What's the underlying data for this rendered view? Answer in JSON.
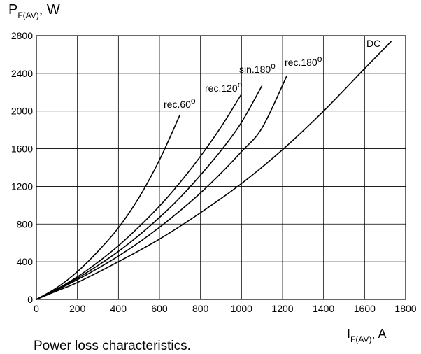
{
  "chart_data": {
    "type": "line",
    "title": "",
    "caption": "Power loss characteristics.",
    "ylabel": {
      "main": "P",
      "sub": "F(AV)",
      "unit": ", W"
    },
    "xlabel": {
      "main": "I",
      "sub": "F(AV)",
      "unit": ", A"
    },
    "xlim": [
      0,
      1800
    ],
    "ylim": [
      0,
      2800
    ],
    "xticks": [
      0,
      200,
      400,
      600,
      800,
      1000,
      1200,
      1400,
      1600,
      1800
    ],
    "yticks": [
      0,
      400,
      800,
      1200,
      1600,
      2000,
      2400,
      2800
    ],
    "grid": true,
    "series": [
      {
        "name": "rec.60",
        "degree": "o",
        "x": [
          0,
          100,
          200,
          300,
          400,
          500,
          600,
          700
        ],
        "y": [
          0,
          125,
          295,
          510,
          760,
          1080,
          1480,
          1960
        ]
      },
      {
        "name": "rec.120",
        "degree": "o",
        "x": [
          0,
          100,
          200,
          300,
          400,
          500,
          600,
          700,
          800,
          900,
          1000
        ],
        "y": [
          0,
          110,
          240,
          395,
          570,
          770,
          990,
          1240,
          1520,
          1830,
          2180
        ]
      },
      {
        "name": "sin.180",
        "degree": "o",
        "x": [
          0,
          100,
          200,
          300,
          400,
          500,
          600,
          700,
          800,
          900,
          1000,
          1100
        ],
        "y": [
          0,
          105,
          225,
          360,
          510,
          680,
          870,
          1080,
          1320,
          1580,
          1880,
          2270
        ]
      },
      {
        "name": "rec.180",
        "degree": "o",
        "x": [
          0,
          100,
          200,
          300,
          400,
          500,
          600,
          700,
          800,
          900,
          1000,
          1100,
          1220
        ],
        "y": [
          0,
          100,
          210,
          330,
          460,
          605,
          765,
          940,
          1130,
          1340,
          1570,
          1820,
          2370
        ]
      },
      {
        "name": "DC",
        "degree": "",
        "x": [
          0,
          100,
          200,
          400,
          600,
          800,
          1000,
          1200,
          1400,
          1600,
          1730
        ],
        "y": [
          0,
          90,
          180,
          400,
          640,
          920,
          1230,
          1590,
          2000,
          2450,
          2740
        ]
      }
    ]
  }
}
